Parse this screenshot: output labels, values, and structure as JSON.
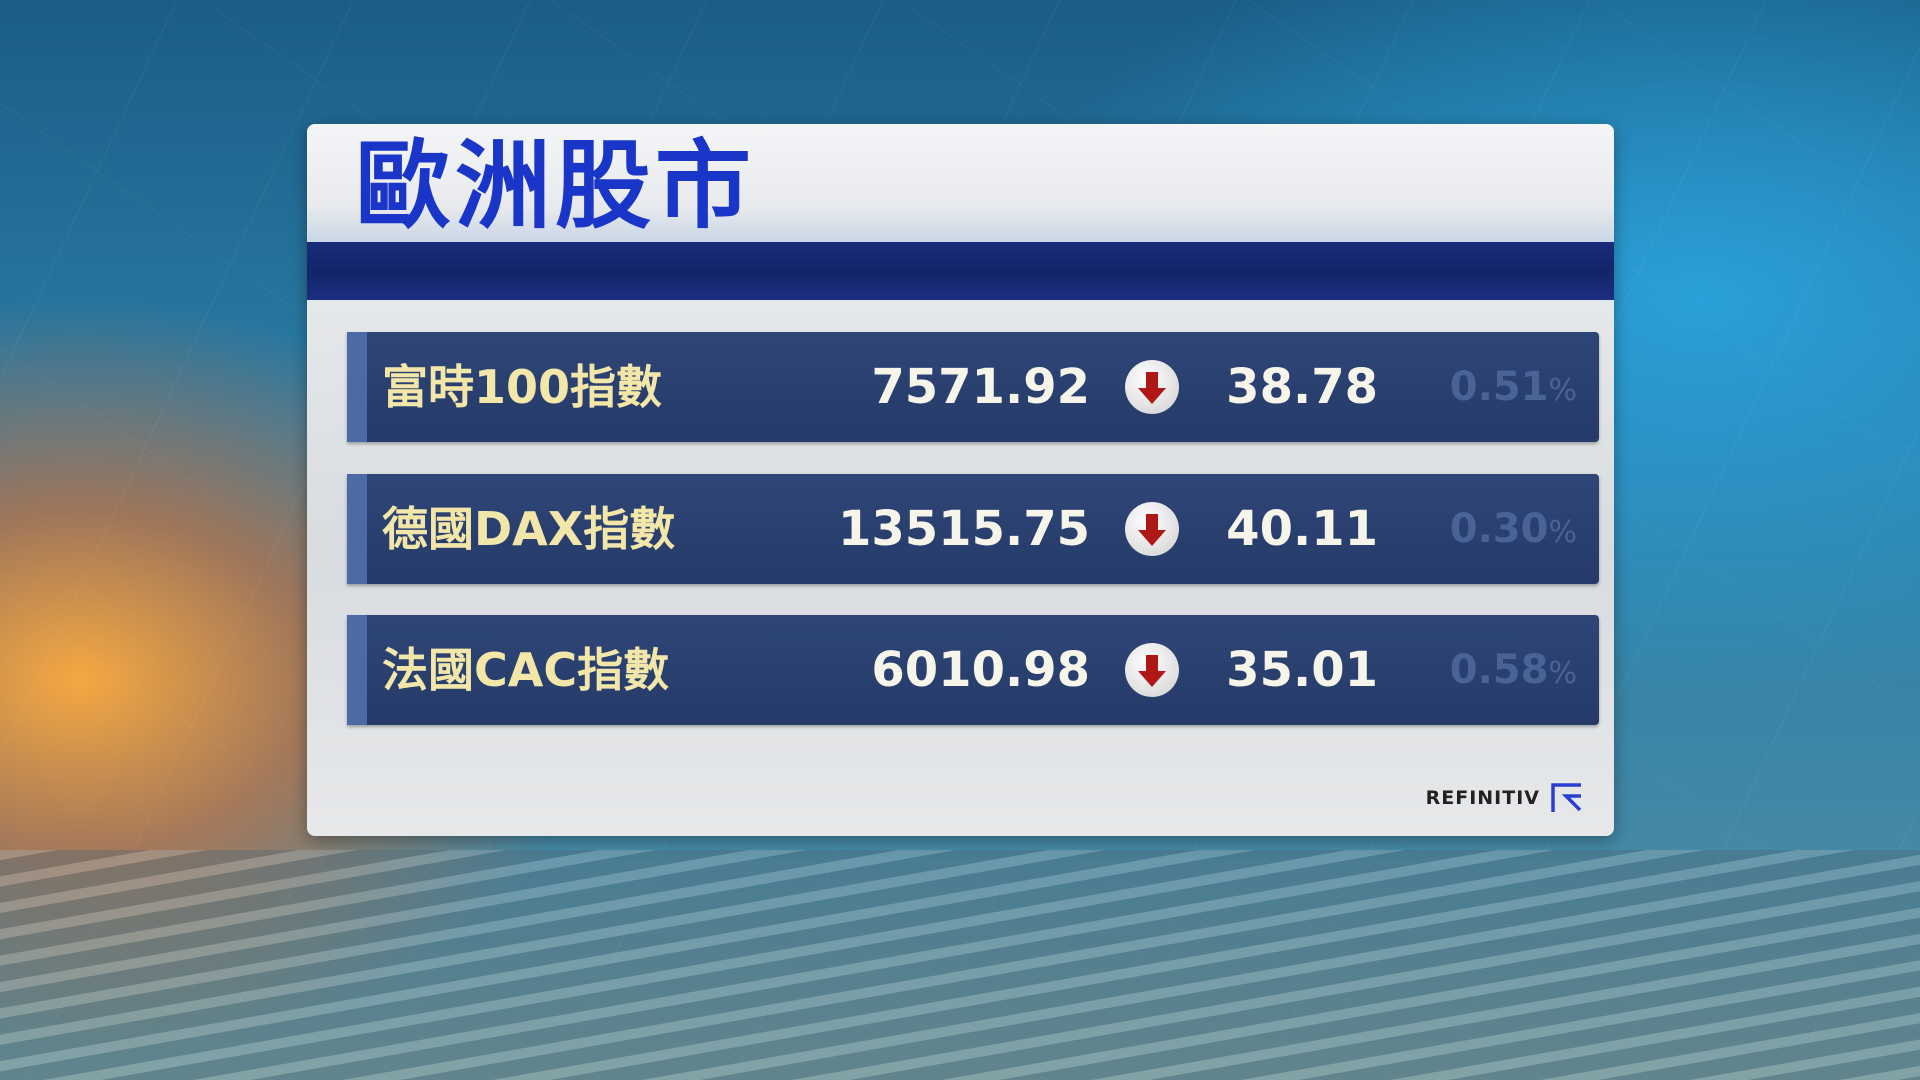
{
  "title": "歐洲股市",
  "rows": [
    {
      "name": "富時100指數",
      "value": "7571.92",
      "direction": "down",
      "change": "38.78",
      "percent": "0.51",
      "percent_unit": "%"
    },
    {
      "name": "德國DAX指數",
      "value": "13515.75",
      "direction": "down",
      "change": "40.11",
      "percent": "0.30",
      "percent_unit": "%"
    },
    {
      "name": "法國CAC指數",
      "value": "6010.98",
      "direction": "down",
      "change": "35.01",
      "percent": "0.58",
      "percent_unit": "%"
    }
  ],
  "source_logo": "REFINITIV",
  "colors": {
    "title": "#1a36c8",
    "row_bg": "#2a406f",
    "label": "#f2e6a8",
    "down_arrow": "#b01818"
  }
}
